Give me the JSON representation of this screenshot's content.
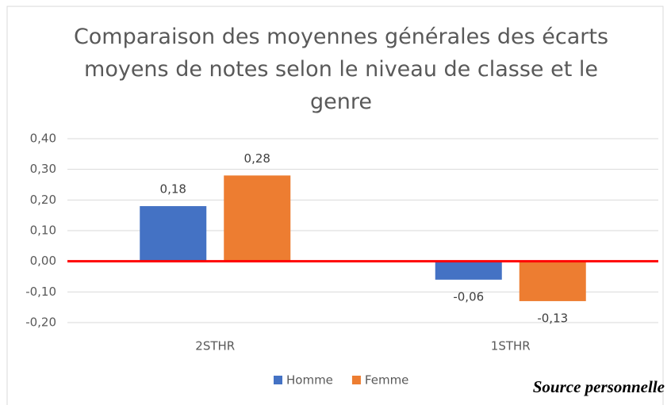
{
  "chart_data": {
    "type": "bar",
    "title": "Comparaison des moyennes générales des écarts moyens de notes selon le niveau de classe et le genre",
    "categories": [
      "2STHR",
      "1STHR"
    ],
    "series": [
      {
        "name": "Homme",
        "color": "#4472c4",
        "values": [
          0.18,
          -0.06
        ],
        "value_labels": [
          "0,18",
          "-0,06"
        ]
      },
      {
        "name": "Femme",
        "color": "#ed7d31",
        "values": [
          0.28,
          -0.13
        ],
        "value_labels": [
          "0,28",
          "-0,13"
        ]
      }
    ],
    "ylim": [
      -0.2,
      0.4
    ],
    "yticks": [
      {
        "value": -0.2,
        "label": "-0,20"
      },
      {
        "value": -0.1,
        "label": "-0,10"
      },
      {
        "value": 0,
        "label": "0,00"
      },
      {
        "value": 0.1,
        "label": "0,10"
      },
      {
        "value": 0.2,
        "label": "0,20"
      },
      {
        "value": 0.3,
        "label": "0,30"
      },
      {
        "value": 0.4,
        "label": "0,40"
      }
    ],
    "grid": true,
    "zero_line_color": "#ff0000",
    "legend": "bottom"
  },
  "source": "Source personnelle"
}
